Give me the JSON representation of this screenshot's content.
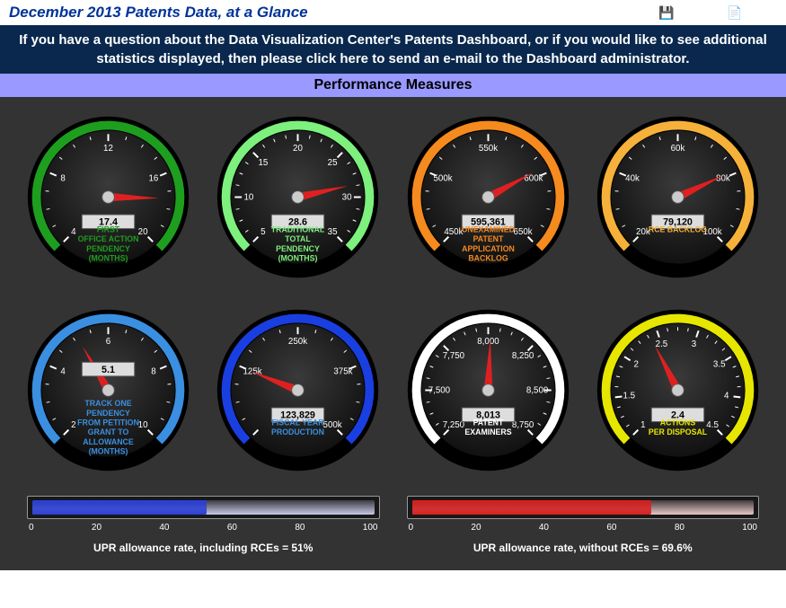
{
  "header": {
    "title": "December 2013 Patents Data, at a Glance",
    "icons": {
      "save": "💾",
      "pdf": "📄"
    }
  },
  "banner": "If you have a question about the Data Visualization Center's Patents Dashboard, or if you would like to see additional statistics displayed, then please click here to send an e-mail to the Dashboard administrator.",
  "section_title": "Performance Measures",
  "gauges": [
    {
      "label": "FIRST\nOFFICE ACTION\nPENDENCY\n(MONTHS)",
      "value_text": "17.4",
      "value": 17.4,
      "min": 4,
      "max": 20,
      "ticks": [
        "4",
        "8",
        "12",
        "16",
        "20"
      ],
      "ring_color": "#1e9e1e",
      "text_color": "#1e9e1e"
    },
    {
      "label": "TRADITIONAL\nTOTAL\nPENDENCY\n(MONTHS)",
      "value_text": "28.6",
      "value": 28.6,
      "min": 5,
      "max": 35,
      "ticks": [
        "5",
        "10",
        "15",
        "20",
        "25",
        "30",
        "35"
      ],
      "ring_color": "#7df07d",
      "text_color": "#7df07d"
    },
    {
      "label": "UNEXAMINED\nPATENT\nAPPLICATION\nBACKLOG",
      "value_text": "595,361",
      "value": 595361,
      "min": 450000,
      "max": 650000,
      "ticks": [
        "450k",
        "500k",
        "550k",
        "600k",
        "650k"
      ],
      "ring_color": "#f58a1f",
      "text_color": "#f58a1f"
    },
    {
      "label": "RCE BACKLOG",
      "value_text": "79,120",
      "value": 79120,
      "min": 20000,
      "max": 100000,
      "ticks": [
        "20k",
        "40k",
        "60k",
        "80k",
        "100k"
      ],
      "ring_color": "#f5b13a",
      "text_color": "#f5b13a"
    },
    {
      "label": "TRACK ONE\nPENDENCY\nFROM PETITION\nGRANT TO\nALLOWANCE\n(MONTHS)",
      "value_text": "5.1",
      "value": 5.1,
      "min": 2,
      "max": 10,
      "ticks": [
        "2",
        "4",
        "6",
        "8",
        "10"
      ],
      "ring_color": "#3a8fe0",
      "text_color": "#3a8fe0",
      "value_box_top": true
    },
    {
      "label": "FISCAL YEAR\nPRODUCTION",
      "value_text": "123,829",
      "value": 123829,
      "min": 0,
      "max": 500000,
      "ticks": [
        "",
        "125k",
        "250k",
        "375k",
        "500k"
      ],
      "ring_color": "#1a3fe0",
      "text_color": "#3a8fe0"
    },
    {
      "label": "PATENT\nEXAMINERS",
      "value_text": "8,013",
      "value": 8013,
      "min": 7250,
      "max": 8750,
      "ticks": [
        "7,250",
        "7,500",
        "7,750",
        "8,000",
        "8,250",
        "8,500",
        "8,750"
      ],
      "ring_color": "#ffffff",
      "text_color": "#ffffff"
    },
    {
      "label": "ACTIONS\nPER DISPOSAL",
      "value_text": "2.4",
      "value": 2.4,
      "min": 1,
      "max": 4.5,
      "ticks": [
        "1",
        "1.5",
        "2",
        "2.5",
        "3",
        "3.5",
        "4",
        "4.5"
      ],
      "ring_color": "#e6e600",
      "text_color": "#e6e600"
    }
  ],
  "bars": [
    {
      "label": "UPR allowance rate, including RCEs = 51%",
      "value": 51,
      "min": 0,
      "max": 100,
      "ticks": [
        "0",
        "20",
        "40",
        "60",
        "80",
        "100"
      ],
      "fill_color": "#2a3fd8",
      "track_tint": "#c8c8e8"
    },
    {
      "label": "UPR allowance rate, without RCEs = 69.6%",
      "value": 69.6,
      "min": 0,
      "max": 100,
      "ticks": [
        "0",
        "20",
        "40",
        "60",
        "80",
        "100"
      ],
      "fill_color": "#d81f1f",
      "track_tint": "#e8c8c8"
    }
  ],
  "style": {
    "needle_color": "#e02020",
    "gauge_face_dark": "#0a0a0a",
    "gauge_face_light": "#3a3a3a",
    "tick_color": "#ffffff",
    "value_box_bg": "#dddddd",
    "value_box_text": "#000000"
  }
}
